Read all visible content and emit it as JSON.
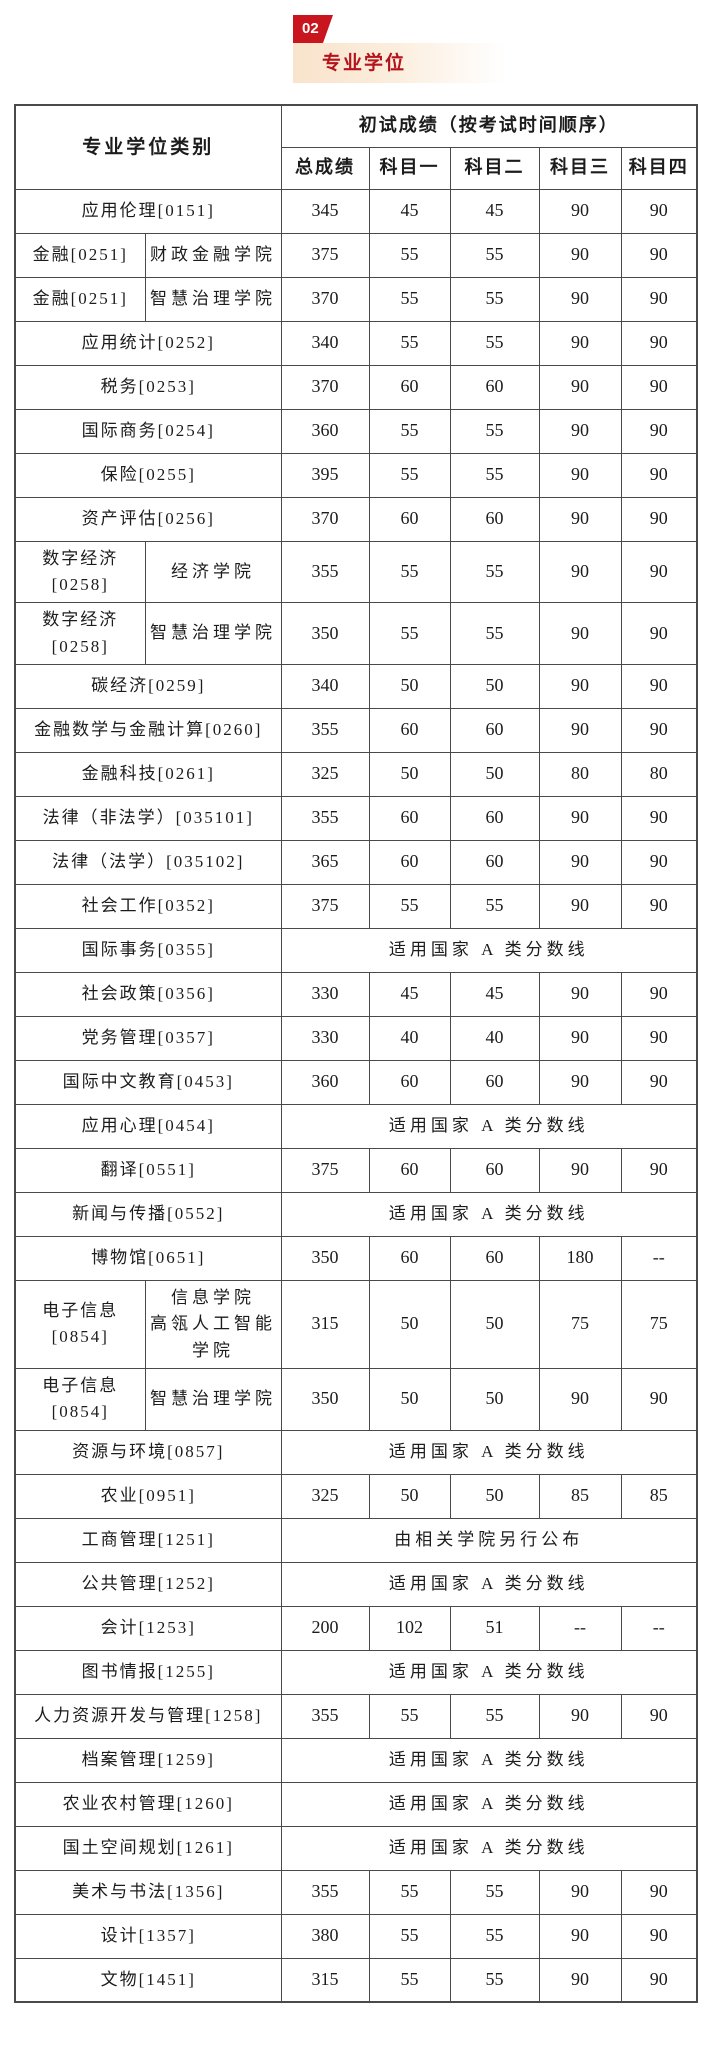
{
  "colors": {
    "accent_red": "#C8151E",
    "title_red": "#B5121B",
    "cream": "#F9E3CC",
    "table_border": "#4A4A4A",
    "text": "#1C1C1C"
  },
  "header": {
    "badge": "02",
    "title": "专业学位"
  },
  "table": {
    "header": {
      "category": "专业学位类别",
      "score_group": "初试成绩（按考试时间顺序）",
      "columns": [
        "总成绩",
        "科目一",
        "科目二",
        "科目三",
        "科目四"
      ]
    },
    "rows": [
      {
        "category": "应用伦理[0151]",
        "scores": [
          "345",
          "45",
          "45",
          "90",
          "90"
        ]
      },
      {
        "category": "金融[0251]",
        "college": "财政金融学院",
        "scores": [
          "375",
          "55",
          "55",
          "90",
          "90"
        ]
      },
      {
        "category": "金融[0251]",
        "college": "智慧治理学院",
        "scores": [
          "370",
          "55",
          "55",
          "90",
          "90"
        ]
      },
      {
        "category": "应用统计[0252]",
        "scores": [
          "340",
          "55",
          "55",
          "90",
          "90"
        ]
      },
      {
        "category": "税务[0253]",
        "scores": [
          "370",
          "60",
          "60",
          "90",
          "90"
        ]
      },
      {
        "category": "国际商务[0254]",
        "scores": [
          "360",
          "55",
          "55",
          "90",
          "90"
        ]
      },
      {
        "category": "保险[0255]",
        "scores": [
          "395",
          "55",
          "55",
          "90",
          "90"
        ]
      },
      {
        "category": "资产评估[0256]",
        "scores": [
          "370",
          "60",
          "60",
          "90",
          "90"
        ]
      },
      {
        "category": "数字经济\n[0258]",
        "college": "经济学院",
        "scores": [
          "355",
          "55",
          "55",
          "90",
          "90"
        ]
      },
      {
        "category": "数字经济\n[0258]",
        "college": "智慧治理学院",
        "scores": [
          "350",
          "55",
          "55",
          "90",
          "90"
        ]
      },
      {
        "category": "碳经济[0259]",
        "scores": [
          "340",
          "50",
          "50",
          "90",
          "90"
        ]
      },
      {
        "category": "金融数学与金融计算[0260]",
        "scores": [
          "355",
          "60",
          "60",
          "90",
          "90"
        ]
      },
      {
        "category": "金融科技[0261]",
        "scores": [
          "325",
          "50",
          "50",
          "80",
          "80"
        ]
      },
      {
        "category": "法律（非法学）[035101]",
        "scores": [
          "355",
          "60",
          "60",
          "90",
          "90"
        ]
      },
      {
        "category": "法律（法学）[035102]",
        "scores": [
          "365",
          "60",
          "60",
          "90",
          "90"
        ]
      },
      {
        "category": "社会工作[0352]",
        "scores": [
          "375",
          "55",
          "55",
          "90",
          "90"
        ]
      },
      {
        "category": "国际事务[0355]",
        "note": "适用国家 A 类分数线"
      },
      {
        "category": "社会政策[0356]",
        "scores": [
          "330",
          "45",
          "45",
          "90",
          "90"
        ]
      },
      {
        "category": "党务管理[0357]",
        "scores": [
          "330",
          "40",
          "40",
          "90",
          "90"
        ]
      },
      {
        "category": "国际中文教育[0453]",
        "scores": [
          "360",
          "60",
          "60",
          "90",
          "90"
        ]
      },
      {
        "category": "应用心理[0454]",
        "note": "适用国家 A 类分数线"
      },
      {
        "category": "翻译[0551]",
        "scores": [
          "375",
          "60",
          "60",
          "90",
          "90"
        ]
      },
      {
        "category": "新闻与传播[0552]",
        "note": "适用国家 A 类分数线"
      },
      {
        "category": "博物馆[0651]",
        "scores": [
          "350",
          "60",
          "60",
          "180",
          "--"
        ]
      },
      {
        "category": "电子信息\n[0854]",
        "college": "信息学院\n高瓴人工智能学院",
        "scores": [
          "315",
          "50",
          "50",
          "75",
          "75"
        ]
      },
      {
        "category": "电子信息\n[0854]",
        "college": "智慧治理学院",
        "scores": [
          "350",
          "50",
          "50",
          "90",
          "90"
        ]
      },
      {
        "category": "资源与环境[0857]",
        "note": "适用国家 A 类分数线"
      },
      {
        "category": "农业[0951]",
        "scores": [
          "325",
          "50",
          "50",
          "85",
          "85"
        ]
      },
      {
        "category": "工商管理[1251]",
        "note": "由相关学院另行公布"
      },
      {
        "category": "公共管理[1252]",
        "note": "适用国家 A 类分数线"
      },
      {
        "category": "会计[1253]",
        "scores": [
          "200",
          "102",
          "51",
          "--",
          "--"
        ]
      },
      {
        "category": "图书情报[1255]",
        "note": "适用国家 A 类分数线"
      },
      {
        "category": "人力资源开发与管理[1258]",
        "scores": [
          "355",
          "55",
          "55",
          "90",
          "90"
        ]
      },
      {
        "category": "档案管理[1259]",
        "note": "适用国家 A 类分数线"
      },
      {
        "category": "农业农村管理[1260]",
        "note": "适用国家 A 类分数线"
      },
      {
        "category": "国土空间规划[1261]",
        "note": "适用国家 A 类分数线"
      },
      {
        "category": "美术与书法[1356]",
        "scores": [
          "355",
          "55",
          "55",
          "90",
          "90"
        ]
      },
      {
        "category": "设计[1357]",
        "scores": [
          "380",
          "55",
          "55",
          "90",
          "90"
        ]
      },
      {
        "category": "文物[1451]",
        "scores": [
          "315",
          "55",
          "55",
          "90",
          "90"
        ]
      }
    ]
  }
}
